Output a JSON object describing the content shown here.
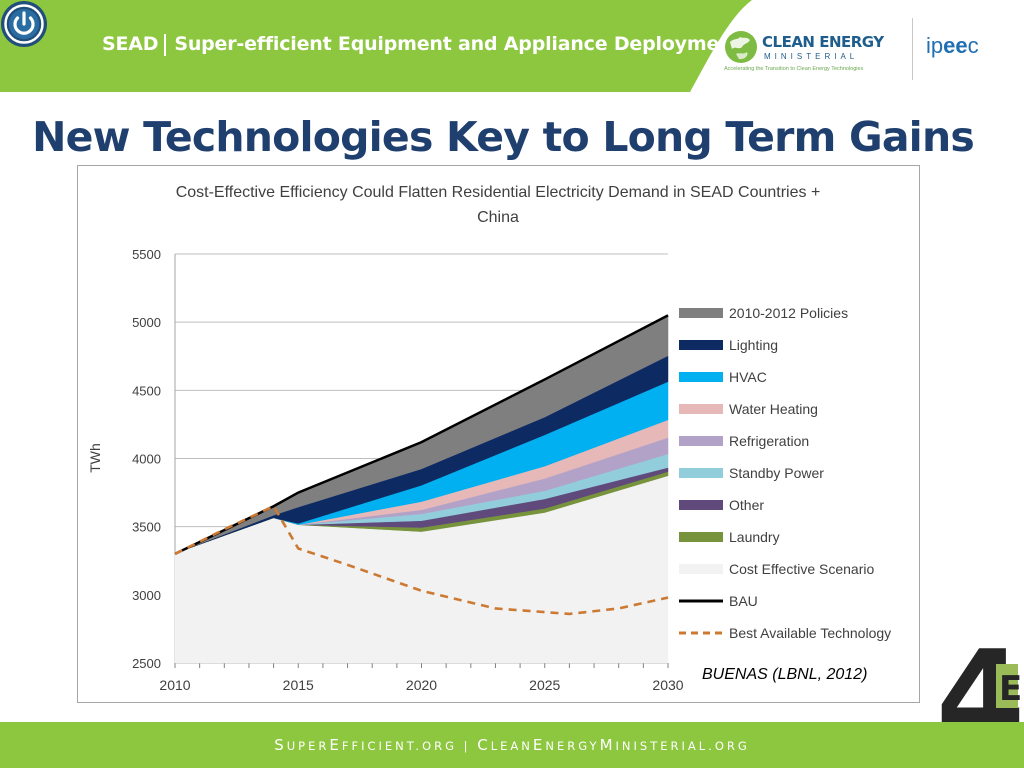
{
  "header": {
    "brand": "SEAD",
    "subtitle": "Super-efficient Equipment and Appliance Deployment",
    "cem_title": "CLEAN ENERGY",
    "cem_subtitle": "MINISTERIAL",
    "cem_tagline": "Accelerating the Transition to Clean Energy Technologies",
    "ipeec_prefix": "ip",
    "ipeec_ee": "ee",
    "ipeec_suffix": "c",
    "brand_color": "#8dc63f"
  },
  "slide": {
    "title": "New Technologies Key to Long Term Gains",
    "source": "BUENAS (LBNL, 2012)",
    "corner_logo_main": "4",
    "corner_logo_accent": "E"
  },
  "footer": {
    "parts": [
      {
        "big": "S",
        "small": "UPER"
      },
      {
        "big": "E",
        "small": "FFICIENT.ORG"
      },
      {
        "big": "",
        "small": " | "
      },
      {
        "big": "C",
        "small": "LEAN"
      },
      {
        "big": "E",
        "small": "NERGY"
      },
      {
        "big": "M",
        "small": "INISTERIAL.ORG"
      }
    ]
  },
  "chart_data": {
    "type": "area",
    "title": "Cost-Effective Efficiency Could Flatten Residential Electricity Demand in SEAD Countries + China",
    "xlabel": "",
    "ylabel": "TWh",
    "xlim": [
      2010,
      2030
    ],
    "ylim": [
      2500,
      5500
    ],
    "x_ticks": [
      "2010",
      "2015",
      "2020",
      "2025",
      "2030"
    ],
    "y_ticks": [
      "2500",
      "3000",
      "3500",
      "4000",
      "4500",
      "5000",
      "5500"
    ],
    "grid": "horizontal",
    "legend_position": "right",
    "x": [
      2010,
      2014,
      2015,
      2020,
      2025,
      2030
    ],
    "bau": [
      3300,
      3650,
      3750,
      4120,
      4580,
      5050
    ],
    "best_available_technology": [
      {
        "x": 2010,
        "y": 3300
      },
      {
        "x": 2012,
        "y": 3480
      },
      {
        "x": 2014,
        "y": 3650
      },
      {
        "x": 2015,
        "y": 3340
      },
      {
        "x": 2017,
        "y": 3220
      },
      {
        "x": 2020,
        "y": 3030
      },
      {
        "x": 2023,
        "y": 2900
      },
      {
        "x": 2026,
        "y": 2860
      },
      {
        "x": 2028,
        "y": 2900
      },
      {
        "x": 2030,
        "y": 2980
      }
    ],
    "series": [
      {
        "name": "2010-2012 Policies",
        "color": "#7f7f7f",
        "top": [
          3300,
          3650,
          3750,
          4120,
          4580,
          5050
        ]
      },
      {
        "name": "Lighting",
        "color": "#0d2a63",
        "top": [
          3300,
          3580,
          3640,
          3920,
          4300,
          4750
        ]
      },
      {
        "name": "HVAC",
        "color": "#00b0f0",
        "top": [
          3300,
          3560,
          3520,
          3800,
          4170,
          4560
        ]
      },
      {
        "name": "Water Heating",
        "color": "#e6b9b8",
        "top": [
          3300,
          3560,
          3510,
          3680,
          3940,
          4280
        ]
      },
      {
        "name": "Refrigeration",
        "color": "#b3a2c7",
        "top": [
          3300,
          3560,
          3510,
          3620,
          3850,
          4150
        ]
      },
      {
        "name": "Standby Power",
        "color": "#92cddc",
        "top": [
          3300,
          3560,
          3510,
          3590,
          3760,
          4030
        ]
      },
      {
        "name": "Other",
        "color": "#604a7b",
        "top": [
          3300,
          3560,
          3510,
          3540,
          3700,
          3930
        ]
      },
      {
        "name": "Laundry",
        "color": "#77933c",
        "top": [
          3300,
          3560,
          3510,
          3490,
          3630,
          3900
        ]
      },
      {
        "name": "Cost Effective Scenario",
        "color": "#f2f2f2",
        "top": [
          3300,
          3560,
          3510,
          3460,
          3600,
          3870
        ]
      },
      {
        "name": "BAU",
        "color": "#000000",
        "line": "solid"
      },
      {
        "name": "Best Available Technology",
        "color": "#cc7a33",
        "line": "dashed"
      }
    ]
  }
}
